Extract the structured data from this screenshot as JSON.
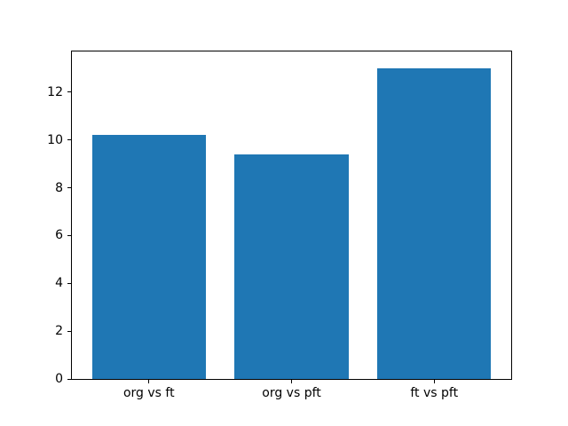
{
  "chart_data": {
    "type": "bar",
    "categories": [
      "org vs ft",
      "org vs pft",
      "ft vs pft"
    ],
    "values": [
      10.2,
      9.4,
      13.0
    ],
    "title": "",
    "xlabel": "",
    "ylabel": "",
    "yticks": [
      0,
      2,
      4,
      6,
      8,
      10,
      12
    ],
    "ylim": [
      0,
      13.7
    ],
    "x_positions": [
      0,
      1,
      2
    ],
    "xlim": [
      -0.54,
      2.54
    ],
    "bar_width": 0.8,
    "bar_color": "#1f77b4",
    "grid": false,
    "legend": null,
    "background_color": "#ffffff",
    "axes_color": "#000000"
  }
}
